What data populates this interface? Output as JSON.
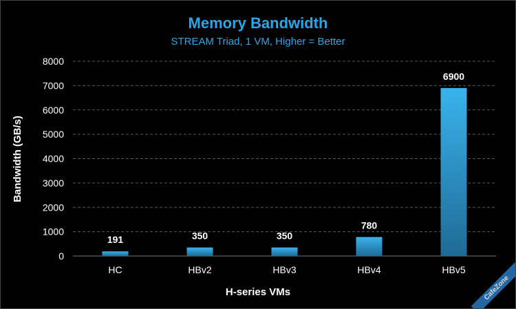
{
  "chart_data": {
    "type": "bar",
    "title": "Memory Bandwidth",
    "subtitle": "STREAM Triad, 1 VM, Higher = Better",
    "xlabel": "H-series VMs",
    "ylabel": "Bandwidth (GB/s)",
    "categories": [
      "HC",
      "HBv2",
      "HBv3",
      "HBv4",
      "HBv5"
    ],
    "values": [
      191,
      350,
      350,
      780,
      6900
    ],
    "data_labels": [
      "191",
      "350",
      "350",
      "780",
      "6900"
    ],
    "ylim": [
      0,
      8000
    ],
    "yticks": [
      0,
      1000,
      2000,
      3000,
      4000,
      5000,
      6000,
      7000,
      8000
    ],
    "grid": true,
    "legend": "none",
    "colors": {
      "background": "#000000",
      "title": "#2aa7e8",
      "bar_top": "#39b3ec",
      "bar_bottom": "#1f6a96",
      "grid": "#5a5a5a",
      "text": "#ffffff"
    }
  },
  "watermark": "CafeZone"
}
